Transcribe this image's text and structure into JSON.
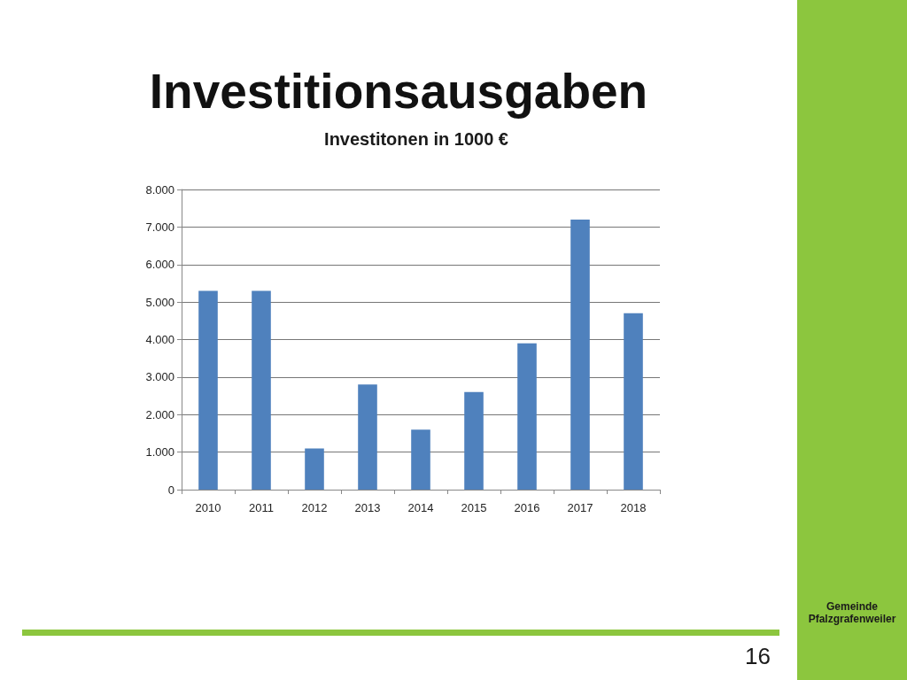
{
  "chart_data": {
    "type": "bar",
    "title": "Investitionsausgaben",
    "subtitle": "Investitonen in 1000 €",
    "categories": [
      "2010",
      "2011",
      "2012",
      "2013",
      "2014",
      "2015",
      "2016",
      "2017",
      "2018"
    ],
    "values": [
      5300,
      5300,
      1100,
      2800,
      1600,
      2600,
      3900,
      7200,
      4700
    ],
    "color": "#4f81bd",
    "ylim": [
      0,
      8000
    ],
    "yticks": [
      0,
      {
        "value": 1000,
        "label": "1.000"
      },
      {
        "value": 2000,
        "label": "2.000"
      },
      {
        "value": 3000,
        "label": "3.000"
      },
      {
        "value": 4000,
        "label": "4.000"
      },
      {
        "value": 5000,
        "label": "5.000"
      },
      {
        "value": 6000,
        "label": "6.000"
      },
      {
        "value": 7000,
        "label": "7.000"
      },
      {
        "value": 8000,
        "label": "8.000"
      }
    ],
    "grid": "y",
    "annotations": [
      "Gemeinde Pfalzgrafenweiler",
      "16"
    ]
  }
}
